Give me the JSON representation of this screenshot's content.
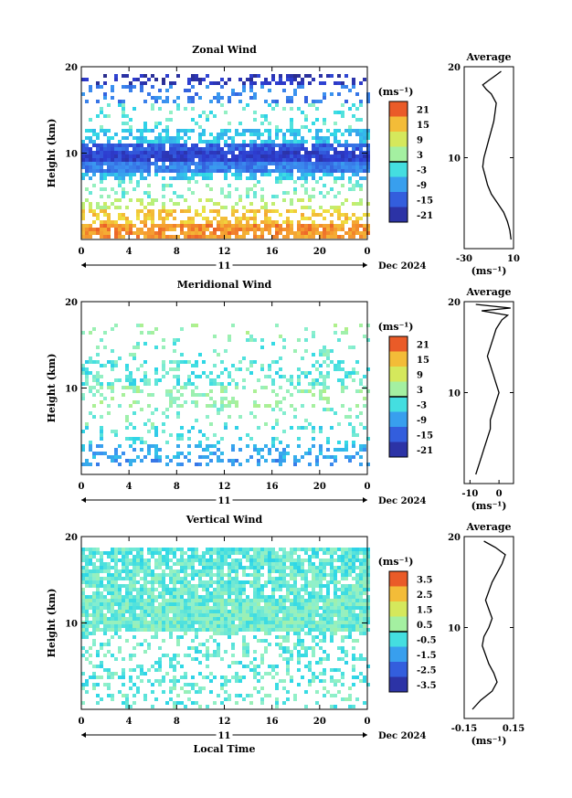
{
  "chart_data": [
    {
      "type": "heatmap",
      "title": "Zonal Wind",
      "xlabel": "",
      "ylabel": "Height (km)",
      "xlim": [
        0,
        24
      ],
      "ylim": [
        0,
        20
      ],
      "x_ticks": [
        "0",
        "4",
        "8",
        "12",
        "16",
        "20",
        "0"
      ],
      "y_ticks": [
        "20",
        "10"
      ],
      "day_label": "11",
      "date_label": "Dec 2024",
      "colorbar": {
        "unit": "(ms⁻¹)",
        "ticks": [
          "21",
          "15",
          "9",
          "3",
          "-3",
          "-9",
          "-15",
          "-21"
        ],
        "range": [
          -24,
          24
        ]
      },
      "field": [
        {
          "h": [
            0.5,
            2.0
          ],
          "value": 18,
          "cover": 0.8
        },
        {
          "h": [
            2.0,
            3.5
          ],
          "value": 14,
          "cover": 0.5
        },
        {
          "h": [
            3.5,
            5.0
          ],
          "value": 6,
          "cover": 0.35
        },
        {
          "h": [
            5.0,
            7.0
          ],
          "value": 0,
          "cover": 0.25
        },
        {
          "h": [
            7.0,
            8.0
          ],
          "value": -6,
          "cover": 0.6
        },
        {
          "h": [
            8.0,
            9.0
          ],
          "value": -12,
          "cover": 0.95
        },
        {
          "h": [
            9.0,
            10.5
          ],
          "value": -18,
          "cover": 0.97
        },
        {
          "h": [
            10.5,
            11.5
          ],
          "value": -15,
          "cover": 0.85
        },
        {
          "h": [
            11.5,
            13.0
          ],
          "value": -6,
          "cover": 0.55
        },
        {
          "h": [
            13.0,
            16.0
          ],
          "value": -2,
          "cover": 0.15
        },
        {
          "h": [
            16.0,
            18.0
          ],
          "value": -12,
          "cover": 0.25
        },
        {
          "h": [
            18.0,
            19.5
          ],
          "value": -20,
          "cover": 0.35
        }
      ],
      "average_profile": {
        "title": "Average",
        "xlabel": "(ms⁻¹)",
        "x_ticks": [
          "-30",
          "10"
        ],
        "xlim": [
          -30,
          10
        ],
        "y_ticks": [
          "20",
          "10"
        ],
        "ylim": [
          0,
          20
        ],
        "x": [
          8,
          7,
          5,
          2,
          -3,
          -8,
          -11,
          -13,
          -15,
          -14,
          -12,
          -10,
          -8,
          -6,
          -5,
          -4,
          -8,
          -12,
          -15,
          -10,
          -5,
          0
        ],
        "y": [
          1,
          2,
          3,
          4,
          5,
          6,
          7,
          8,
          9,
          10,
          11,
          12,
          13,
          14,
          15,
          16,
          17,
          17.5,
          18,
          18.5,
          19,
          19.5
        ]
      }
    },
    {
      "type": "heatmap",
      "title": "Meridional Wind",
      "xlabel": "",
      "ylabel": "Height (km)",
      "xlim": [
        0,
        24
      ],
      "ylim": [
        0,
        20
      ],
      "x_ticks": [
        "0",
        "4",
        "8",
        "12",
        "16",
        "20",
        "0"
      ],
      "y_ticks": [
        "20",
        "10"
      ],
      "day_label": "11",
      "date_label": "Dec 2024",
      "colorbar": {
        "unit": "(ms⁻¹)",
        "ticks": [
          "21",
          "15",
          "9",
          "3",
          "-3",
          "-9",
          "-15",
          "-21"
        ],
        "range": [
          -24,
          24
        ]
      },
      "field": [
        {
          "h": [
            1.0,
            2.0
          ],
          "value": -10,
          "cover": 0.3
        },
        {
          "h": [
            2.0,
            3.5
          ],
          "value": -8,
          "cover": 0.35
        },
        {
          "h": [
            3.5,
            6.0
          ],
          "value": -3,
          "cover": 0.2
        },
        {
          "h": [
            6.0,
            8.0
          ],
          "value": 0,
          "cover": 0.15
        },
        {
          "h": [
            8.0,
            10.5
          ],
          "value": 2,
          "cover": 0.25
        },
        {
          "h": [
            10.5,
            13.5
          ],
          "value": -2,
          "cover": 0.35
        },
        {
          "h": [
            13.5,
            16.0
          ],
          "value": -1,
          "cover": 0.1
        },
        {
          "h": [
            16.0,
            17.5
          ],
          "value": 2,
          "cover": 0.08
        }
      ],
      "average_profile": {
        "title": "Average",
        "xlabel": "(ms⁻¹)",
        "x_ticks": [
          "-10",
          "0"
        ],
        "xlim": [
          -12,
          5
        ],
        "y_ticks": [
          "20",
          "10"
        ],
        "ylim": [
          0,
          20
        ],
        "x": [
          -8,
          -7,
          -6,
          -5,
          -4,
          -3,
          -3,
          -2,
          -1,
          0,
          -1,
          -2,
          -3,
          -4,
          -3,
          -2,
          -1,
          0,
          1,
          3,
          -6,
          4,
          -8
        ],
        "y": [
          1,
          2,
          3,
          4,
          5,
          6,
          7,
          8,
          9,
          10,
          11,
          12,
          13,
          14,
          15,
          16,
          17,
          17.5,
          18,
          18.5,
          19,
          19.3,
          19.7
        ]
      }
    },
    {
      "type": "heatmap",
      "title": "Vertical Wind",
      "xlabel": "Local Time",
      "ylabel": "Height (km)",
      "xlim": [
        0,
        24
      ],
      "ylim": [
        0,
        20
      ],
      "x_ticks": [
        "0",
        "4",
        "8",
        "12",
        "16",
        "20",
        "0"
      ],
      "y_ticks": [
        "20",
        "10"
      ],
      "day_label": "11",
      "date_label": "Dec 2024",
      "colorbar": {
        "unit": "(ms⁻¹)",
        "ticks": [
          "3.5",
          "2.5",
          "1.5",
          "0.5",
          "-0.5",
          "-1.5",
          "-2.5",
          "-3.5"
        ],
        "range": [
          -4,
          4
        ]
      },
      "field": [
        {
          "h": [
            0.5,
            3.0
          ],
          "value": -0.2,
          "cover": 0.25
        },
        {
          "h": [
            3.0,
            7.0
          ],
          "value": -0.3,
          "cover": 0.3
        },
        {
          "h": [
            7.0,
            9.0
          ],
          "value": -0.2,
          "cover": 0.35
        },
        {
          "h": [
            9.0,
            13.0
          ],
          "value": -0.1,
          "cover": 0.95
        },
        {
          "h": [
            13.0,
            16.0
          ],
          "value": -0.2,
          "cover": 0.8
        },
        {
          "h": [
            16.0,
            19.0
          ],
          "value": -0.3,
          "cover": 0.85
        }
      ],
      "average_profile": {
        "title": "Average",
        "xlabel": "(ms⁻¹)",
        "x_ticks": [
          "-0.15",
          "0.15"
        ],
        "xlim": [
          -0.15,
          0.15
        ],
        "y_ticks": [
          "20",
          "10"
        ],
        "ylim": [
          0,
          20
        ],
        "x": [
          -0.1,
          -0.05,
          0.02,
          0.05,
          0.03,
          0.0,
          -0.02,
          -0.04,
          -0.03,
          0.0,
          0.02,
          0.0,
          -0.02,
          0.0,
          0.02,
          0.05,
          0.08,
          0.1,
          0.04,
          -0.03
        ],
        "y": [
          1,
          2,
          3,
          4,
          5,
          6,
          7,
          8,
          9,
          10,
          11,
          12,
          13,
          14,
          15,
          16,
          17,
          18,
          18.8,
          19.5
        ]
      }
    }
  ]
}
